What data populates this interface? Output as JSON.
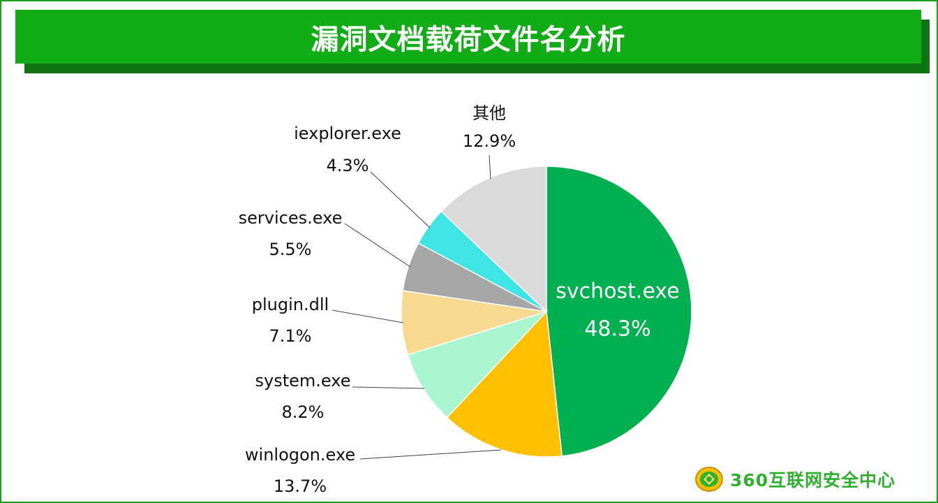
{
  "title": "漏洞文档载荷文件名分析",
  "logo": {
    "text": "360互联网安全中心",
    "icon": "360-shield-icon",
    "color": "#2fb12f"
  },
  "chart_data": {
    "type": "pie",
    "title": "漏洞文档载荷文件名分析",
    "slices": [
      {
        "name": "svchost.exe",
        "value": 48.3,
        "label": "48.3%",
        "color": "#00b050"
      },
      {
        "name": "winlogon.exe",
        "value": 13.7,
        "label": "13.7%",
        "color": "#ffc000"
      },
      {
        "name": "system.exe",
        "value": 8.2,
        "label": "8.2%",
        "color": "#a9f5d0"
      },
      {
        "name": "plugin.dll",
        "value": 7.1,
        "label": "7.1%",
        "color": "#f9d990"
      },
      {
        "name": "services.exe",
        "value": 5.5,
        "label": "5.5%",
        "color": "#a6a6a6"
      },
      {
        "name": "iexplorer.exe",
        "value": 4.3,
        "label": "4.3%",
        "color": "#3fe5e5"
      },
      {
        "name": "其他",
        "value": 12.9,
        "label": "12.9%",
        "color": "#d9d9d9"
      }
    ]
  }
}
